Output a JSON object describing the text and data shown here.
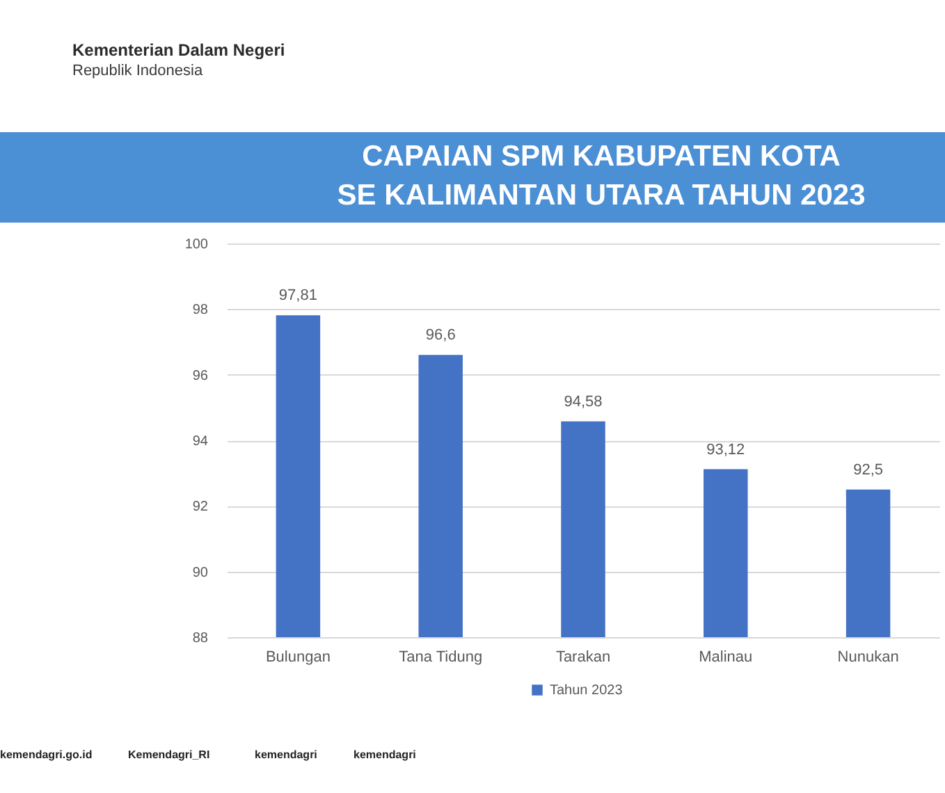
{
  "chart_data": {
    "type": "bar",
    "title": "CAPAIAN SPM KABUPATEN KOTA\nSE KALIMANTAN UTARA TAHUN 2023",
    "categories": [
      "Bulungan",
      "Tana Tidung",
      "Tarakan",
      "Malinau",
      "Nunukan"
    ],
    "series": [
      {
        "name": "Tahun 2023",
        "color": "#4472c4",
        "values": [
          97.81,
          96.6,
          94.58,
          93.12,
          92.5
        ],
        "value_labels": [
          "97,81",
          "96,6",
          "94,58",
          "93,12",
          "92,5"
        ]
      }
    ],
    "ylim": [
      88,
      100
    ],
    "yticks": [
      88,
      90,
      92,
      94,
      96,
      98,
      100
    ],
    "grid": "y",
    "legend": "bottom",
    "annotations": [
      "Kementerian Dalam Negeri",
      "Republik Indonesia",
      "kemendagri.go.id",
      "Kemendagri_RI",
      "kemendagri",
      "kemendagri"
    ]
  }
}
